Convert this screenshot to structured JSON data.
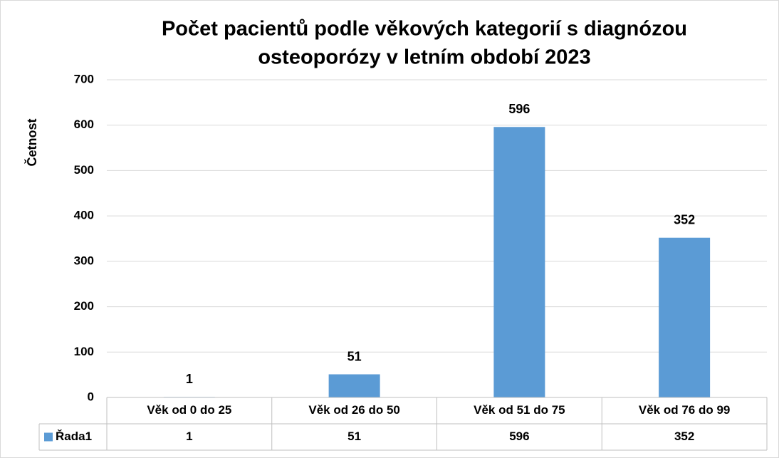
{
  "chart_data": {
    "type": "bar",
    "title": [
      "Počet pacientů podle věkových kategorií s diagnózou",
      "osteoporózy v letním období 2023"
    ],
    "y_label": "Četnost",
    "categories": [
      "Věk od 0 do 25",
      "Věk od 26 do 50",
      "Věk od 51 do 75",
      "Věk od 76 do 99"
    ],
    "series": [
      {
        "name": "Řada1",
        "color": "#5b9bd5",
        "values": [
          1,
          51,
          596,
          352
        ]
      }
    ],
    "ylim": [
      0,
      700
    ],
    "yticks": [
      0,
      100,
      200,
      300,
      400,
      500,
      600,
      700
    ],
    "grid": true,
    "data_table": true
  }
}
